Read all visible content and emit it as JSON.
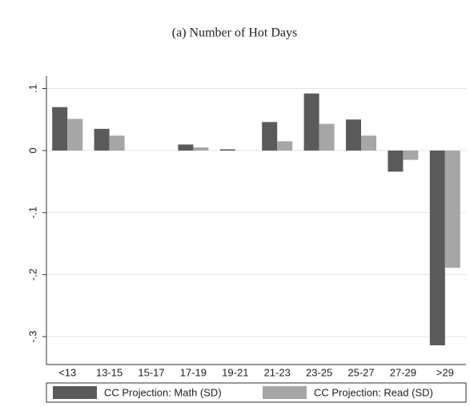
{
  "chart_data": {
    "type": "bar",
    "title": "(a) Number of Hot Days",
    "categories": [
      "<13",
      "13-15",
      "15-17",
      "17-19",
      "19-21",
      "21-23",
      "23-25",
      "25-27",
      "27-29",
      ">29"
    ],
    "series": [
      {
        "name": "CC Projection: Math (SD)",
        "color": "#5a5a5a",
        "values": [
          0.07,
          0.035,
          0,
          0.0097,
          0.002,
          0.046,
          0.092,
          0.05,
          -0.034,
          -0.314
        ]
      },
      {
        "name": "CC Projection: Read (SD)",
        "color": "#a6a6a6",
        "values": [
          0.051,
          0.024,
          0,
          0.005,
          0,
          0.015,
          0.043,
          0.024,
          -0.015,
          -0.189
        ]
      }
    ],
    "ylim": [
      -0.345,
      0.12
    ],
    "yticks": [
      {
        "value": 0.1,
        "label": ".1"
      },
      0,
      {
        "value": -0.1,
        "label": "-.1"
      },
      {
        "value": -0.2,
        "label": "-.2"
      },
      {
        "value": -0.3,
        "label": "-.3"
      }
    ],
    "grid": true,
    "legend": "bottom"
  }
}
